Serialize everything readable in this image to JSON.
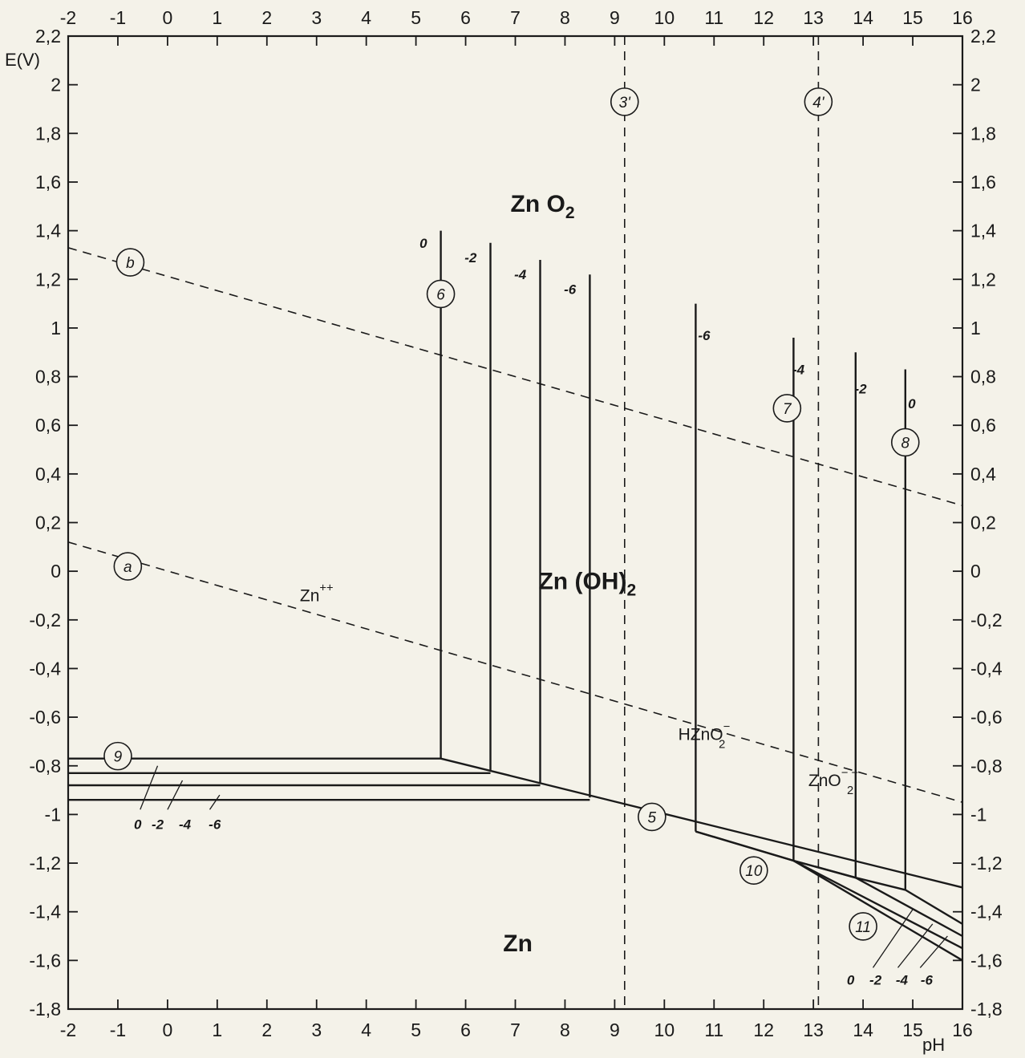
{
  "chart_data": {
    "type": "line",
    "title": "",
    "xlabel": "pH",
    "ylabel": "E(V)",
    "xlim": [
      -2,
      16
    ],
    "ylim": [
      -1.8,
      2.2
    ],
    "grid": false,
    "x_ticks": [
      "-2",
      "-1",
      "0",
      "1",
      "2",
      "3",
      "4",
      "5",
      "6",
      "7",
      "8",
      "9",
      "10",
      "11",
      "12",
      "13",
      "14",
      "15",
      "16"
    ],
    "y_ticks_left": [
      {
        "value": 2.2,
        "label": "2,2"
      },
      {
        "value": 2.0,
        "label": "2"
      },
      {
        "value": 1.8,
        "label": "1,8"
      },
      {
        "value": 1.6,
        "label": "1,6"
      },
      {
        "value": 1.4,
        "label": "1,4"
      },
      {
        "value": 1.2,
        "label": "1,2"
      },
      {
        "value": 1.0,
        "label": "1"
      },
      {
        "value": 0.8,
        "label": "0,8"
      },
      {
        "value": 0.6,
        "label": "0,6"
      },
      {
        "value": 0.4,
        "label": "0,4"
      },
      {
        "value": 0.2,
        "label": "0,2"
      },
      {
        "value": 0.0,
        "label": "0"
      },
      {
        "value": -0.2,
        "label": "-0,2"
      },
      {
        "value": -0.4,
        "label": "-0,4"
      },
      {
        "value": -0.6,
        "label": "-0,6"
      },
      {
        "value": -0.8,
        "label": "-0,8"
      },
      {
        "value": -1.0,
        "label": "-1"
      },
      {
        "value": -1.2,
        "label": "-1,2"
      },
      {
        "value": -1.4,
        "label": "-1,4"
      },
      {
        "value": -1.6,
        "label": "-1,6"
      },
      {
        "value": -1.8,
        "label": "-1,8"
      }
    ],
    "y_ticks_right": [
      {
        "value": 2.2,
        "label": "2,2"
      },
      {
        "value": 2.0,
        "label": "2"
      },
      {
        "value": 1.8,
        "label": "1,8"
      },
      {
        "value": 1.6,
        "label": "1,6"
      },
      {
        "value": 1.4,
        "label": "1,4"
      },
      {
        "value": 1.2,
        "label": "1,2"
      },
      {
        "value": 1.0,
        "label": "1"
      },
      {
        "value": 0.8,
        "label": "0,8"
      },
      {
        "value": 0.6,
        "label": "0,6"
      },
      {
        "value": 0.4,
        "label": "0,4"
      },
      {
        "value": 0.2,
        "label": "0,2"
      },
      {
        "value": 0.0,
        "label": "0"
      },
      {
        "value": -0.2,
        "label": "-0,2"
      },
      {
        "value": -0.4,
        "label": "-0,4"
      },
      {
        "value": -0.6,
        "label": "-0,6"
      },
      {
        "value": -0.8,
        "label": "-0,8"
      },
      {
        "value": -1.0,
        "label": "-1"
      },
      {
        "value": -1.2,
        "label": "-1,2"
      },
      {
        "value": -1.4,
        "label": "-1,4"
      },
      {
        "value": -1.6,
        "label": "-1,6"
      },
      {
        "value": -1.8,
        "label": "-1,8"
      }
    ],
    "dashed_lines": [
      {
        "id": "a",
        "label": "a",
        "points": [
          [
            -2,
            0.12
          ],
          [
            16,
            -0.95
          ]
        ],
        "label_at": [
          -0.8,
          0.02
        ]
      },
      {
        "id": "b",
        "label": "b",
        "points": [
          [
            -2,
            1.33
          ],
          [
            16,
            0.27
          ]
        ],
        "label_at": [
          -0.75,
          1.27
        ]
      },
      {
        "id": "3'",
        "label": "3'",
        "points": [
          [
            9.2,
            2.2
          ],
          [
            9.2,
            -1.8
          ]
        ],
        "label_at": [
          9.2,
          1.93
        ]
      },
      {
        "id": "4'",
        "label": "4'",
        "points": [
          [
            13.1,
            2.2
          ],
          [
            13.1,
            -1.8
          ]
        ],
        "label_at": [
          13.1,
          1.93
        ]
      }
    ],
    "solid_lines": [
      {
        "id": "5",
        "label": "5",
        "points": [
          [
            5.5,
            -0.77
          ],
          [
            16,
            -1.3
          ]
        ],
        "label_at": [
          9.75,
          -1.01
        ]
      },
      {
        "id": "6-0",
        "points": [
          [
            5.5,
            -0.77
          ],
          [
            5.5,
            1.4
          ]
        ]
      },
      {
        "id": "6-2",
        "points": [
          [
            6.5,
            -0.82
          ],
          [
            6.5,
            1.35
          ]
        ]
      },
      {
        "id": "6-4",
        "points": [
          [
            7.5,
            -0.87
          ],
          [
            7.5,
            1.28
          ]
        ]
      },
      {
        "id": "6-6",
        "points": [
          [
            8.5,
            -0.93
          ],
          [
            8.5,
            1.22
          ]
        ]
      },
      {
        "id": "7-6",
        "points": [
          [
            10.63,
            -1.07
          ],
          [
            10.63,
            1.1
          ]
        ]
      },
      {
        "id": "7-4",
        "points": [
          [
            12.6,
            -1.19
          ],
          [
            12.6,
            0.96
          ]
        ]
      },
      {
        "id": "8-2",
        "points": [
          [
            13.85,
            -1.26
          ],
          [
            13.85,
            0.9
          ]
        ]
      },
      {
        "id": "8-0",
        "points": [
          [
            14.85,
            -1.31
          ],
          [
            14.85,
            0.83
          ]
        ]
      },
      {
        "id": "9-0",
        "points": [
          [
            -2,
            -0.77
          ],
          [
            5.5,
            -0.77
          ]
        ]
      },
      {
        "id": "9-2",
        "points": [
          [
            -2,
            -0.83
          ],
          [
            6.5,
            -0.83
          ]
        ]
      },
      {
        "id": "9-4",
        "points": [
          [
            -2,
            -0.88
          ],
          [
            7.5,
            -0.88
          ]
        ]
      },
      {
        "id": "9-6",
        "points": [
          [
            -2,
            -0.94
          ],
          [
            8.5,
            -0.94
          ]
        ]
      },
      {
        "id": "10-6",
        "points": [
          [
            10.63,
            -1.07
          ],
          [
            12.6,
            -1.19
          ]
        ]
      },
      {
        "id": "10-4",
        "points": [
          [
            10.63,
            -1.07
          ],
          [
            12.6,
            -1.19
          ],
          [
            13.85,
            -1.26
          ],
          [
            14.85,
            -1.31
          ],
          [
            16,
            -1.45
          ]
        ]
      },
      {
        "id": "11-2",
        "points": [
          [
            12.6,
            -1.19
          ],
          [
            13.85,
            -1.26
          ],
          [
            16,
            -1.5
          ]
        ]
      },
      {
        "id": "11-4",
        "points": [
          [
            12.6,
            -1.19
          ],
          [
            16,
            -1.55
          ]
        ]
      },
      {
        "id": "11-6",
        "points": [
          [
            12.6,
            -1.19
          ],
          [
            16,
            -1.6
          ]
        ]
      }
    ],
    "hatches": [
      {
        "points": [
          [
            -0.2,
            -0.8
          ],
          [
            -0.55,
            -0.98
          ]
        ]
      },
      {
        "points": [
          [
            0.3,
            -0.86
          ],
          [
            0.0,
            -0.98
          ]
        ]
      },
      {
        "points": [
          [
            1.05,
            -0.92
          ],
          [
            0.85,
            -0.98
          ]
        ]
      },
      {
        "points": [
          [
            15.0,
            -1.39
          ],
          [
            14.2,
            -1.63
          ]
        ]
      },
      {
        "points": [
          [
            15.4,
            -1.45
          ],
          [
            14.7,
            -1.63
          ]
        ]
      },
      {
        "points": [
          [
            15.7,
            -1.5
          ],
          [
            15.15,
            -1.63
          ]
        ]
      }
    ],
    "circled_labels": [
      {
        "text": "a",
        "at": [
          -0.8,
          0.02
        ]
      },
      {
        "text": "b",
        "at": [
          -0.75,
          1.27
        ]
      },
      {
        "text": "3'",
        "at": [
          9.2,
          1.93
        ]
      },
      {
        "text": "4'",
        "at": [
          13.1,
          1.93
        ]
      },
      {
        "text": "5",
        "at": [
          9.75,
          -1.01
        ]
      },
      {
        "text": "6",
        "at": [
          5.5,
          1.14
        ]
      },
      {
        "text": "7",
        "at": [
          12.47,
          0.67
        ]
      },
      {
        "text": "8",
        "at": [
          14.85,
          0.53
        ]
      },
      {
        "text": "9",
        "at": [
          -1.0,
          -0.76
        ]
      },
      {
        "text": "10",
        "at": [
          11.8,
          -1.23
        ]
      },
      {
        "text": "11",
        "at": [
          14.0,
          -1.46
        ]
      }
    ],
    "concentration_labels": [
      {
        "text": "0",
        "at": [
          5.15,
          1.35
        ]
      },
      {
        "text": "-2",
        "at": [
          6.1,
          1.29
        ]
      },
      {
        "text": "-4",
        "at": [
          7.1,
          1.22
        ]
      },
      {
        "text": "-6",
        "at": [
          8.1,
          1.16
        ]
      },
      {
        "text": "-6",
        "at": [
          10.8,
          0.97
        ]
      },
      {
        "text": "-4",
        "at": [
          12.7,
          0.83
        ]
      },
      {
        "text": "-2",
        "at": [
          13.95,
          0.75
        ]
      },
      {
        "text": "0",
        "at": [
          14.98,
          0.69
        ]
      },
      {
        "text": "0",
        "at": [
          -0.6,
          -1.04
        ]
      },
      {
        "text": "-2",
        "at": [
          -0.2,
          -1.04
        ]
      },
      {
        "text": "-4",
        "at": [
          0.35,
          -1.04
        ]
      },
      {
        "text": "-6",
        "at": [
          0.95,
          -1.04
        ]
      },
      {
        "text": "0",
        "at": [
          13.75,
          -1.68
        ]
      },
      {
        "text": "-2",
        "at": [
          14.25,
          -1.68
        ]
      },
      {
        "text": "-4",
        "at": [
          14.78,
          -1.68
        ]
      },
      {
        "text": "-6",
        "at": [
          15.28,
          -1.68
        ]
      }
    ],
    "regions": [
      {
        "main": "Zn O",
        "sub": "2",
        "sup": "",
        "at": [
          7.55,
          1.51
        ],
        "size": "big"
      },
      {
        "main": "Zn (OH)",
        "sub": "2",
        "sup": "",
        "at": [
          8.45,
          -0.04
        ],
        "size": "big"
      },
      {
        "main": "Zn",
        "sub": "",
        "sup": "",
        "at": [
          7.05,
          -1.53
        ],
        "size": "big"
      },
      {
        "main": "Zn",
        "sub": "",
        "sup": "++",
        "at": [
          3.0,
          -0.09
        ],
        "size": "small"
      },
      {
        "main": "HZnO",
        "sub": "2",
        "sup": "−",
        "at": [
          10.8,
          -0.66
        ],
        "size": "small"
      },
      {
        "main": "ZnO",
        "sub": "2",
        "sup": "− −",
        "at": [
          13.4,
          -0.85
        ],
        "size": "small"
      }
    ]
  }
}
